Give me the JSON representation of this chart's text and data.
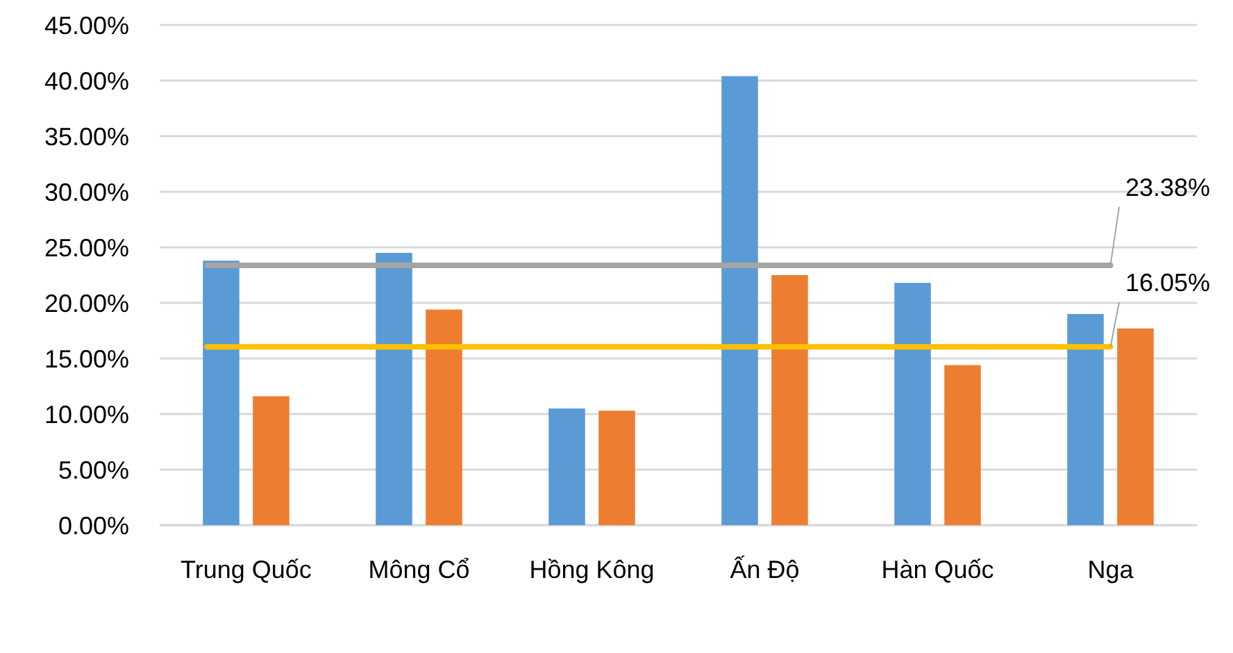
{
  "chart_data": {
    "type": "bar",
    "categories": [
      "Trung Quốc",
      "Mông Cổ",
      "Hồng Kông",
      "Ấn Độ",
      "Hàn Quốc",
      "Nga"
    ],
    "series": [
      {
        "color": "#5b9bd5",
        "values": [
          23.8,
          24.5,
          10.5,
          40.4,
          21.8,
          19.0
        ]
      },
      {
        "color": "#ed7d31",
        "values": [
          11.6,
          19.4,
          10.3,
          22.5,
          14.4,
          17.7
        ]
      }
    ],
    "ylim": [
      0,
      45
    ],
    "yticks": [
      {
        "value": 0,
        "label": "0.00%"
      },
      {
        "value": 5,
        "label": "5.00%"
      },
      {
        "value": 10,
        "label": "10.00%"
      },
      {
        "value": 15,
        "label": "15.00%"
      },
      {
        "value": 20,
        "label": "20.00%"
      },
      {
        "value": 25,
        "label": "25.00%"
      },
      {
        "value": 30,
        "label": "30.00%"
      },
      {
        "value": 35,
        "label": "35.00%"
      },
      {
        "value": 40,
        "label": "40.00%"
      },
      {
        "value": 45,
        "label": "45.00%"
      }
    ],
    "grid": "y",
    "ref_lines": [
      {
        "axis": "y",
        "value": 23.38,
        "label": "23.38%",
        "color": "#a5a5a5"
      },
      {
        "axis": "y",
        "value": 16.05,
        "label": "16.05%",
        "color": "#ffc000"
      }
    ]
  }
}
